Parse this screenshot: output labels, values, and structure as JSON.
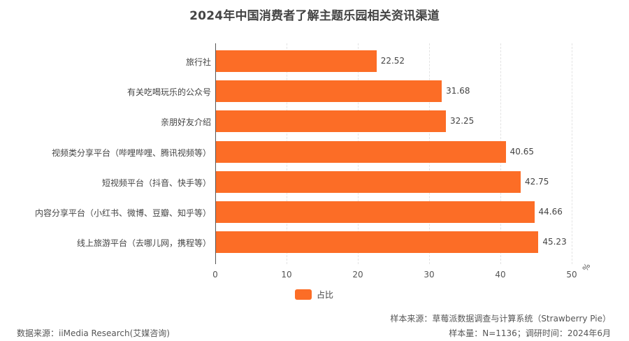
{
  "header": {
    "title": "2024年中国消费者了解主题乐园相关资讯渠道"
  },
  "legend": {
    "label": "占比",
    "color": "#fc6d26"
  },
  "axis": {
    "unit": "%",
    "ticks": [
      "0",
      "10",
      "20",
      "30",
      "40",
      "50"
    ]
  },
  "bars": [
    {
      "label": "旅行社",
      "value": "22.52"
    },
    {
      "label": "有关吃喝玩乐的公众号",
      "value": "31.68"
    },
    {
      "label": "亲朋好友介绍",
      "value": "32.25"
    },
    {
      "label": "视频类分享平台（哔哩哔哩、腾讯视频等）",
      "value": "40.65"
    },
    {
      "label": "短视频平台（抖音、快手等）",
      "value": "42.75"
    },
    {
      "label": "内容分享平台（小红书、微博、豆瓣、知乎等）",
      "value": "44.66"
    },
    {
      "label": "线上旅游平台（去哪儿网，携程等）",
      "value": "45.23"
    }
  ],
  "footer": {
    "data_source": "数据来源：iiMedia Research(艾媒咨询)",
    "sample_source": "样本来源：草莓派数据调查与计算系统（Strawberry Pie）",
    "sample_info": "样本量：N=1136；调研时间：2024年6月"
  },
  "chart_data": {
    "type": "bar",
    "orientation": "horizontal",
    "title": "2024年中国消费者了解主题乐园相关资讯渠道",
    "categories": [
      "旅行社",
      "有关吃喝玩乐的公众号",
      "亲朋好友介绍",
      "视频类分享平台（哔哩哔哩、腾讯视频等）",
      "短视频平台（抖音、快手等）",
      "内容分享平台（小红书、微博、豆瓣、知乎等）",
      "线上旅游平台（去哪儿网，携程等）"
    ],
    "series": [
      {
        "name": "占比",
        "values": [
          22.52,
          31.68,
          32.25,
          40.65,
          42.75,
          44.66,
          45.23
        ],
        "color": "#fc6d26"
      }
    ],
    "xlabel": "%",
    "ylabel": "",
    "xlim": [
      0,
      50
    ],
    "xticks": [
      0,
      10,
      20,
      30,
      40,
      50
    ],
    "grid": "vertical dashed",
    "legend_position": "bottom",
    "data_labels": true
  }
}
